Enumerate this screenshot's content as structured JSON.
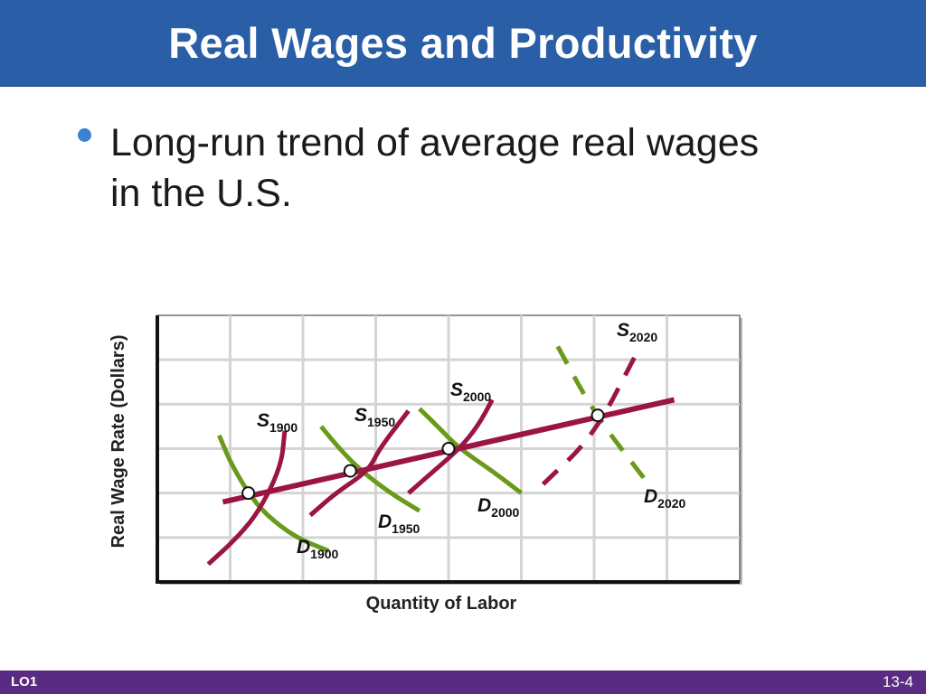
{
  "slide": {
    "title": "Real Wages and Productivity",
    "bullet": "Long-run trend of average real wages in the U.S."
  },
  "footer": {
    "lo_label": "LO1",
    "page_number": "13-4"
  },
  "colors": {
    "title_bar": "#2a5ea6",
    "footer_bar": "#5a2b82",
    "bullet": "#3b82d6",
    "supply_curve": "#9b1446",
    "demand_curve": "#6a9a1a",
    "trend_line": "#9b1446"
  },
  "chart_data": {
    "type": "line",
    "title": "",
    "xlabel": "Quantity of Labor",
    "ylabel": "Real Wage Rate (Dollars)",
    "xlim": [
      0,
      8
    ],
    "ylim": [
      0,
      6
    ],
    "grid": true,
    "years": [
      "1900",
      "1950",
      "2000",
      "2020"
    ],
    "supply_curves": [
      {
        "name": "S",
        "year": "1900",
        "style": "solid",
        "points": [
          [
            0.7,
            0.4
          ],
          [
            1.1,
            1.0
          ],
          [
            1.4,
            1.6
          ],
          [
            1.7,
            2.6
          ],
          [
            1.75,
            3.4
          ]
        ]
      },
      {
        "name": "S",
        "year": "1950",
        "style": "solid",
        "points": [
          [
            2.1,
            1.5
          ],
          [
            2.45,
            2.0
          ],
          [
            2.9,
            2.5
          ],
          [
            3.05,
            3.0
          ],
          [
            3.45,
            3.85
          ]
        ]
      },
      {
        "name": "S",
        "year": "2000",
        "style": "solid",
        "points": [
          [
            3.45,
            2.0
          ],
          [
            3.8,
            2.5
          ],
          [
            4.15,
            3.0
          ],
          [
            4.4,
            3.5
          ],
          [
            4.6,
            4.1
          ]
        ]
      },
      {
        "name": "S",
        "year": "2020",
        "style": "dashed",
        "points": [
          [
            5.3,
            2.2
          ],
          [
            6.0,
            3.3
          ],
          [
            6.6,
            5.2
          ]
        ]
      }
    ],
    "demand_curves": [
      {
        "name": "D",
        "year": "1900",
        "style": "solid",
        "points": [
          [
            0.85,
            3.3
          ],
          [
            1.0,
            2.7
          ],
          [
            1.25,
            2.0
          ],
          [
            1.5,
            1.5
          ],
          [
            1.9,
            1.0
          ],
          [
            2.35,
            0.7
          ]
        ]
      },
      {
        "name": "D",
        "year": "1950",
        "style": "solid",
        "points": [
          [
            2.25,
            3.5
          ],
          [
            2.5,
            3.0
          ],
          [
            2.8,
            2.5
          ],
          [
            3.2,
            2.0
          ],
          [
            3.6,
            1.6
          ]
        ]
      },
      {
        "name": "D",
        "year": "2000",
        "style": "solid",
        "points": [
          [
            3.6,
            3.9
          ],
          [
            3.85,
            3.5
          ],
          [
            4.15,
            3.0
          ],
          [
            4.6,
            2.5
          ],
          [
            5.0,
            2.0
          ]
        ]
      },
      {
        "name": "D",
        "year": "2020",
        "style": "dashed",
        "points": [
          [
            5.5,
            5.3
          ],
          [
            6.0,
            3.8
          ],
          [
            6.7,
            2.3
          ]
        ]
      }
    ],
    "trend_line": {
      "points": [
        [
          0.9,
          1.8
        ],
        [
          7.1,
          4.1
        ]
      ]
    },
    "equilibria": [
      [
        1.25,
        2.0
      ],
      [
        2.65,
        2.5
      ],
      [
        4.0,
        3.0
      ],
      [
        6.05,
        3.75
      ]
    ]
  }
}
